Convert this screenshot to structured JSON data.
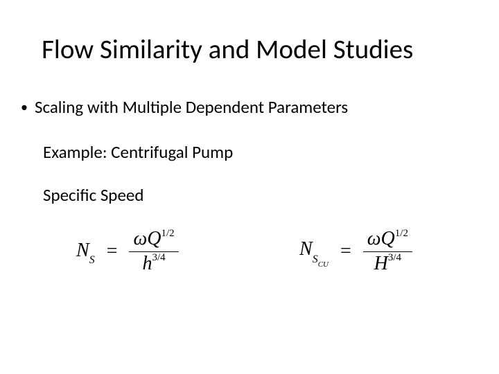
{
  "slide": {
    "title": "Flow Similarity and Model Studies",
    "bullet": "Scaling with Multiple Dependent Parameters",
    "sub1": "Example: Centrifugal Pump",
    "sub2": "Specific Speed",
    "background_color": "#ffffff",
    "text_color": "#000000",
    "title_fontsize": 39,
    "body_fontsize": 25
  },
  "equations": {
    "eq1": {
      "lhs_var": "N",
      "lhs_sub": "S",
      "num_sym": "ω",
      "num_var": "Q",
      "num_exp": "1/2",
      "den_var": "h",
      "den_exp": "3/4"
    },
    "eq2": {
      "lhs_var": "N",
      "lhs_sub": "S",
      "lhs_subsub": "CU",
      "num_sym": "ω",
      "num_var": "Q",
      "num_exp": "1/2",
      "den_var": "H",
      "den_exp": "3/4"
    },
    "font_family": "Times New Roman",
    "font_size": 28
  }
}
